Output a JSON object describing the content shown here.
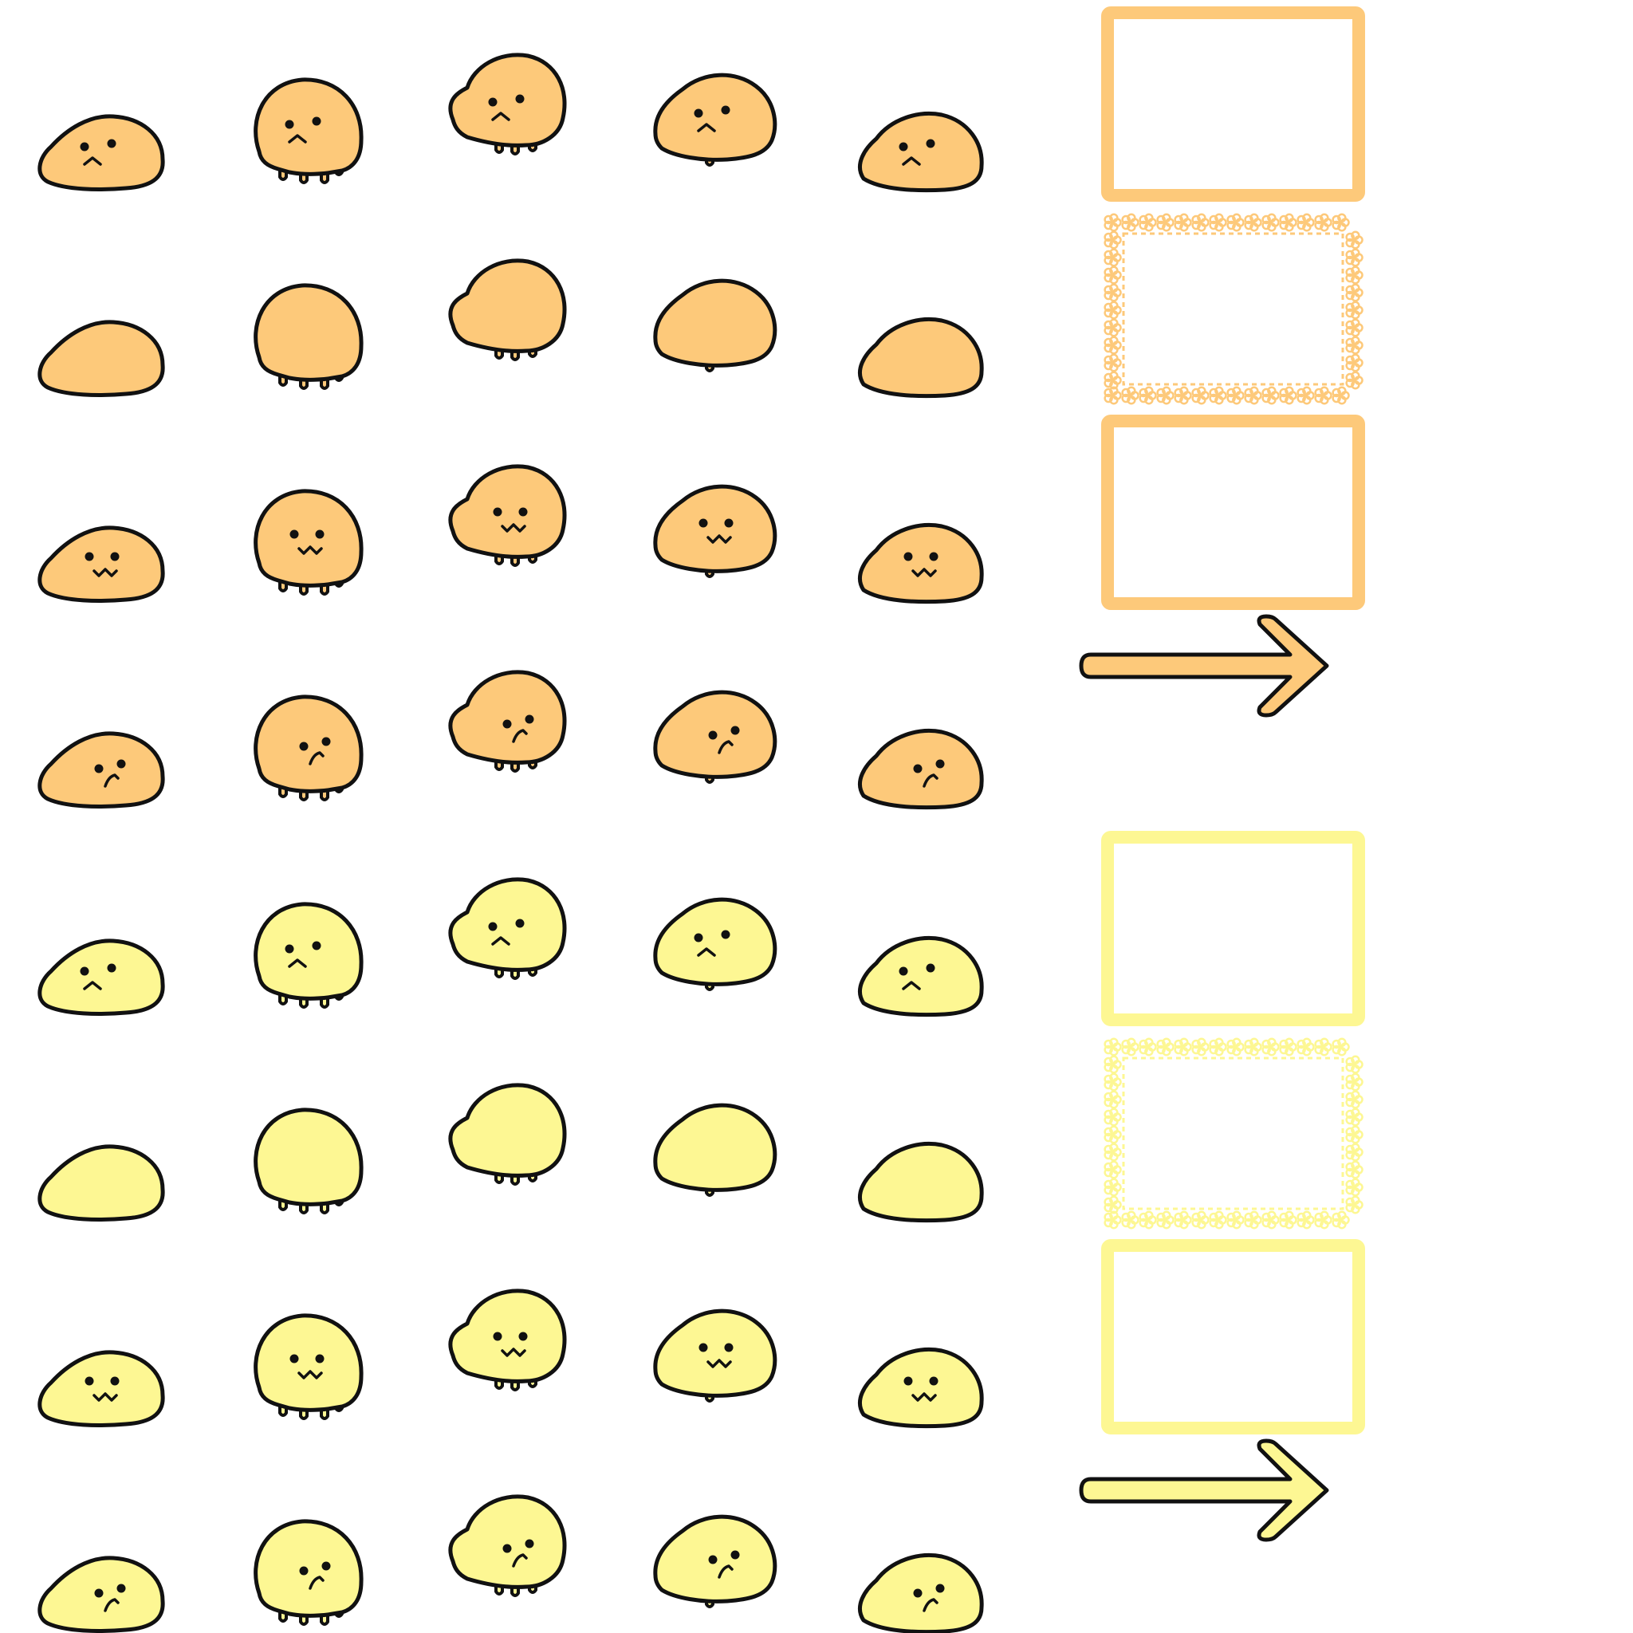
{
  "colors": {
    "orange": "#FDC97A",
    "yellow": "#FDF793",
    "line": "#111111",
    "background": "#FFFFFF"
  },
  "sheet": {
    "sections": [
      {
        "name": "orange-set",
        "color_key": "orange"
      },
      {
        "name": "yellow-set",
        "color_key": "yellow"
      }
    ],
    "blob_rows": [
      "frown-face",
      "blank-face",
      "pout-face",
      "glance-face"
    ],
    "blob_columns": [
      "flat-mochi",
      "tall-dripping",
      "floating-lump",
      "round-lump",
      "flat-mochi-alt"
    ],
    "frames": [
      "plain-frame",
      "lace-frame",
      "plain-frame"
    ],
    "arrow": "right-arrow-icon"
  }
}
